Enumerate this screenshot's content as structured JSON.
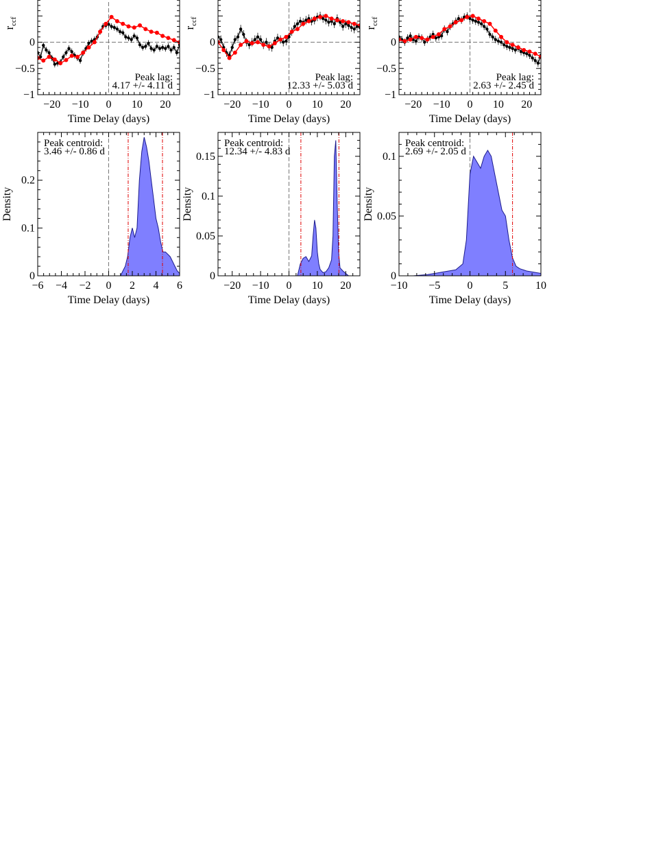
{
  "chart_data": [
    {
      "type": "line",
      "panel": "ccf-1",
      "ylabel": "r",
      "ylabel_sub": "ccf",
      "xlabel": "Time Delay (days)",
      "xlim": [
        -25,
        25
      ],
      "ylim": [
        -1,
        1
      ],
      "xticks": [
        -20,
        -10,
        0,
        10,
        20
      ],
      "yticks": [
        -1,
        -0.5,
        0
      ],
      "annotation": [
        "Peak lag:",
        "4.17 +/- 4.11 d"
      ],
      "series": [
        {
          "color": "#ff0000",
          "x": [
            -25,
            -23,
            -21,
            -19,
            -17,
            -15,
            -13,
            -11,
            -9,
            -7,
            -5,
            -3,
            -1,
            1,
            3,
            5,
            7,
            9,
            11,
            13,
            15,
            17,
            19,
            21,
            23,
            25
          ],
          "y": [
            -0.3,
            -0.35,
            -0.28,
            -0.33,
            -0.4,
            -0.34,
            -0.26,
            -0.28,
            -0.2,
            -0.1,
            0.0,
            0.2,
            0.35,
            0.48,
            0.4,
            0.35,
            0.3,
            0.28,
            0.32,
            0.25,
            0.2,
            0.18,
            0.12,
            0.08,
            0.04,
            0.0
          ]
        },
        {
          "color": "#000000",
          "x": [
            -25,
            -24,
            -23,
            -22,
            -21,
            -20,
            -19,
            -18,
            -17,
            -16,
            -15,
            -14,
            -13,
            -12,
            -11,
            -10,
            -9,
            -8,
            -7,
            -6,
            -5,
            -4,
            -3,
            -2,
            -1,
            0,
            1,
            2,
            3,
            4,
            5,
            6,
            7,
            8,
            9,
            10,
            11,
            12,
            13,
            14,
            15,
            16,
            17,
            18,
            19,
            20,
            21,
            22,
            23,
            24,
            25
          ],
          "y": [
            -0.2,
            -0.28,
            -0.06,
            -0.15,
            -0.2,
            -0.3,
            -0.42,
            -0.4,
            -0.38,
            -0.28,
            -0.2,
            -0.12,
            -0.18,
            -0.25,
            -0.3,
            -0.35,
            -0.2,
            -0.12,
            -0.02,
            0.02,
            0.05,
            0.1,
            0.2,
            0.3,
            0.32,
            0.34,
            0.3,
            0.28,
            0.25,
            0.2,
            0.18,
            0.1,
            0.08,
            0.05,
            0.12,
            0.08,
            -0.05,
            -0.1,
            -0.08,
            -0.02,
            -0.12,
            -0.15,
            -0.08,
            -0.12,
            -0.1,
            -0.12,
            -0.08,
            -0.15,
            -0.1,
            -0.2,
            -0.05
          ],
          "err": 0.06
        }
      ]
    },
    {
      "type": "line",
      "panel": "ccf-2",
      "ylabel": "r",
      "ylabel_sub": "ccf",
      "xlabel": "Time Delay (days)",
      "xlim": [
        -25,
        25
      ],
      "ylim": [
        -1,
        1
      ],
      "xticks": [
        -20,
        -10,
        0,
        10,
        20
      ],
      "yticks": [
        -1,
        -0.5,
        0
      ],
      "annotation": [
        "Peak lag:",
        "12.33 +/- 5.03 d"
      ],
      "series": [
        {
          "color": "#ff0000",
          "x": [
            -25,
            -23,
            -21,
            -19,
            -17,
            -15,
            -13,
            -11,
            -9,
            -7,
            -5,
            -3,
            -1,
            1,
            3,
            5,
            7,
            9,
            11,
            13,
            15,
            17,
            19,
            21,
            23,
            25
          ],
          "y": [
            0.0,
            -0.15,
            -0.3,
            -0.2,
            -0.05,
            0.02,
            -0.02,
            0.0,
            -0.05,
            -0.08,
            -0.02,
            0.05,
            0.1,
            0.2,
            0.25,
            0.35,
            0.4,
            0.45,
            0.48,
            0.5,
            0.45,
            0.42,
            0.4,
            0.38,
            0.35,
            0.32
          ]
        },
        {
          "color": "#000000",
          "x": [
            -25,
            -24,
            -23,
            -22,
            -21,
            -20,
            -19,
            -18,
            -17,
            -16,
            -15,
            -14,
            -13,
            -12,
            -11,
            -10,
            -9,
            -8,
            -7,
            -6,
            -5,
            -4,
            -3,
            -2,
            -1,
            0,
            1,
            2,
            3,
            4,
            5,
            6,
            7,
            8,
            9,
            10,
            11,
            12,
            13,
            14,
            15,
            16,
            17,
            18,
            19,
            20,
            21,
            22,
            23,
            24,
            25
          ],
          "y": [
            0.1,
            0.05,
            -0.1,
            -0.2,
            -0.25,
            -0.1,
            0.05,
            0.1,
            0.25,
            0.15,
            0.0,
            -0.05,
            0.0,
            0.05,
            0.1,
            0.05,
            -0.05,
            0.0,
            -0.08,
            -0.1,
            0.02,
            0.08,
            0.05,
            0.0,
            0.02,
            0.1,
            0.2,
            0.3,
            0.35,
            0.4,
            0.38,
            0.42,
            0.45,
            0.4,
            0.42,
            0.48,
            0.5,
            0.45,
            0.42,
            0.38,
            0.4,
            0.35,
            0.45,
            0.38,
            0.3,
            0.35,
            0.32,
            0.28,
            0.25,
            0.3,
            0.28
          ],
          "err": 0.08
        }
      ]
    },
    {
      "type": "line",
      "panel": "ccf-3",
      "ylabel": "r",
      "ylabel_sub": "ccf",
      "xlabel": "Time Delay (days)",
      "xlim": [
        -25,
        25
      ],
      "ylim": [
        -1,
        1
      ],
      "xticks": [
        -20,
        -10,
        0,
        10,
        20
      ],
      "yticks": [
        -1,
        -0.5,
        0
      ],
      "annotation": [
        "Peak lag:",
        "2.63 +/- 2.45 d"
      ],
      "series": [
        {
          "color": "#ff0000",
          "x": [
            -25,
            -23,
            -21,
            -19,
            -17,
            -15,
            -13,
            -11,
            -9,
            -7,
            -5,
            -3,
            -1,
            1,
            3,
            5,
            7,
            9,
            11,
            13,
            15,
            17,
            19,
            21,
            23,
            25
          ],
          "y": [
            0.05,
            0.02,
            0.05,
            0.1,
            0.08,
            0.05,
            0.1,
            0.15,
            0.25,
            0.3,
            0.38,
            0.42,
            0.48,
            0.5,
            0.45,
            0.4,
            0.35,
            0.22,
            0.1,
            0.0,
            -0.05,
            -0.1,
            -0.15,
            -0.18,
            -0.22,
            -0.28
          ]
        },
        {
          "color": "#000000",
          "x": [
            -25,
            -24,
            -23,
            -22,
            -21,
            -20,
            -19,
            -18,
            -17,
            -16,
            -15,
            -14,
            -13,
            -12,
            -11,
            -10,
            -9,
            -8,
            -7,
            -6,
            -5,
            -4,
            -3,
            -2,
            -1,
            0,
            1,
            2,
            3,
            4,
            5,
            6,
            7,
            8,
            9,
            10,
            11,
            12,
            13,
            14,
            15,
            16,
            17,
            18,
            19,
            20,
            21,
            22,
            23,
            24,
            25
          ],
          "y": [
            0.1,
            0.05,
            0.0,
            0.08,
            0.12,
            0.05,
            0.02,
            0.1,
            0.08,
            0.0,
            0.05,
            0.1,
            0.15,
            0.08,
            0.1,
            0.12,
            0.25,
            0.2,
            0.3,
            0.35,
            0.4,
            0.45,
            0.42,
            0.48,
            0.5,
            0.45,
            0.42,
            0.4,
            0.38,
            0.35,
            0.3,
            0.25,
            0.15,
            0.1,
            0.05,
            0.02,
            0.0,
            -0.05,
            -0.08,
            -0.1,
            -0.12,
            -0.15,
            -0.12,
            -0.18,
            -0.2,
            -0.22,
            -0.25,
            -0.3,
            -0.35,
            -0.4,
            -0.25
          ],
          "err": 0.07
        }
      ]
    },
    {
      "type": "area",
      "panel": "density-1",
      "ylabel": "Density",
      "xlabel": "Time Delay (days)",
      "xlim": [
        -6,
        6
      ],
      "ylim": [
        0,
        0.3
      ],
      "xticks": [
        -6,
        -4,
        -2,
        0,
        2,
        4,
        6
      ],
      "xtick_labels": [
        "−6",
        "−4",
        "−2",
        "0",
        "2",
        "4",
        "6"
      ],
      "yticks": [
        0,
        0.1,
        0.2
      ],
      "ytick_labels": [
        "0",
        "0.1",
        "0.2"
      ],
      "annotation": [
        "Peak centroid:",
        "3.46 +/- 0.86 d"
      ],
      "vlines_red": [
        1.65,
        4.55
      ],
      "x": [
        1.0,
        1.2,
        1.4,
        1.6,
        1.8,
        2.0,
        2.2,
        2.4,
        2.6,
        2.8,
        3.0,
        3.2,
        3.4,
        3.6,
        3.8,
        4.0,
        4.2,
        4.4,
        4.6,
        4.8,
        5.0,
        5.2,
        5.4,
        5.6,
        5.8,
        6.0
      ],
      "y": [
        0.0,
        0.01,
        0.02,
        0.04,
        0.08,
        0.1,
        0.08,
        0.1,
        0.2,
        0.26,
        0.29,
        0.27,
        0.24,
        0.2,
        0.16,
        0.12,
        0.1,
        0.07,
        0.05,
        0.05,
        0.045,
        0.04,
        0.03,
        0.02,
        0.01,
        0.005
      ]
    },
    {
      "type": "area",
      "panel": "density-2",
      "ylabel": "Density",
      "xlabel": "Time Delay (days)",
      "xlim": [
        -25,
        25
      ],
      "ylim": [
        0,
        0.18
      ],
      "xticks": [
        -20,
        -10,
        0,
        10,
        20
      ],
      "xtick_labels": [
        "−20",
        "−10",
        "0",
        "10",
        "20"
      ],
      "yticks": [
        0,
        0.05,
        0.1,
        0.15
      ],
      "ytick_labels": [
        "0",
        "0.05",
        "0.1",
        "0.15"
      ],
      "annotation": [
        "Peak centroid:",
        "12.34 +/- 4.83 d"
      ],
      "vlines_red": [
        4.2,
        17.6
      ],
      "x": [
        3,
        4,
        5,
        6,
        7,
        8,
        8.5,
        9,
        9.5,
        10,
        10.5,
        11,
        12,
        13,
        14,
        15,
        15.5,
        16,
        16.5,
        17,
        17.5,
        18,
        19,
        20,
        21
      ],
      "y": [
        0.0,
        0.015,
        0.022,
        0.024,
        0.018,
        0.025,
        0.05,
        0.07,
        0.06,
        0.03,
        0.015,
        0.008,
        0.004,
        0.005,
        0.01,
        0.02,
        0.05,
        0.15,
        0.17,
        0.09,
        0.03,
        0.01,
        0.006,
        0.003,
        0.0
      ]
    },
    {
      "type": "area",
      "panel": "density-3",
      "ylabel": "Density",
      "xlabel": "Time Delay (days)",
      "xlim": [
        -10,
        10
      ],
      "ylim": [
        0,
        0.12
      ],
      "xticks": [
        -10,
        -5,
        0,
        5,
        10
      ],
      "xtick_labels": [
        "−10",
        "−5",
        "0",
        "5",
        "10"
      ],
      "yticks": [
        0,
        0.05,
        0.1
      ],
      "ytick_labels": [
        "0",
        "0.05",
        "0.1"
      ],
      "annotation": [
        "Peak centroid:",
        "2.69 +/- 2.05 d"
      ],
      "vlines_red": [
        6.0
      ],
      "x": [
        -8,
        -6,
        -4,
        -2,
        -1,
        -0.5,
        0,
        0.5,
        1,
        1.5,
        2,
        2.5,
        3,
        3.5,
        4,
        4.5,
        5,
        5.5,
        6,
        6.5,
        7,
        8,
        9,
        10
      ],
      "y": [
        0.0,
        0.001,
        0.003,
        0.005,
        0.01,
        0.03,
        0.085,
        0.1,
        0.095,
        0.09,
        0.1,
        0.105,
        0.1,
        0.085,
        0.07,
        0.055,
        0.05,
        0.03,
        0.015,
        0.008,
        0.006,
        0.004,
        0.003,
        0.002
      ]
    }
  ]
}
